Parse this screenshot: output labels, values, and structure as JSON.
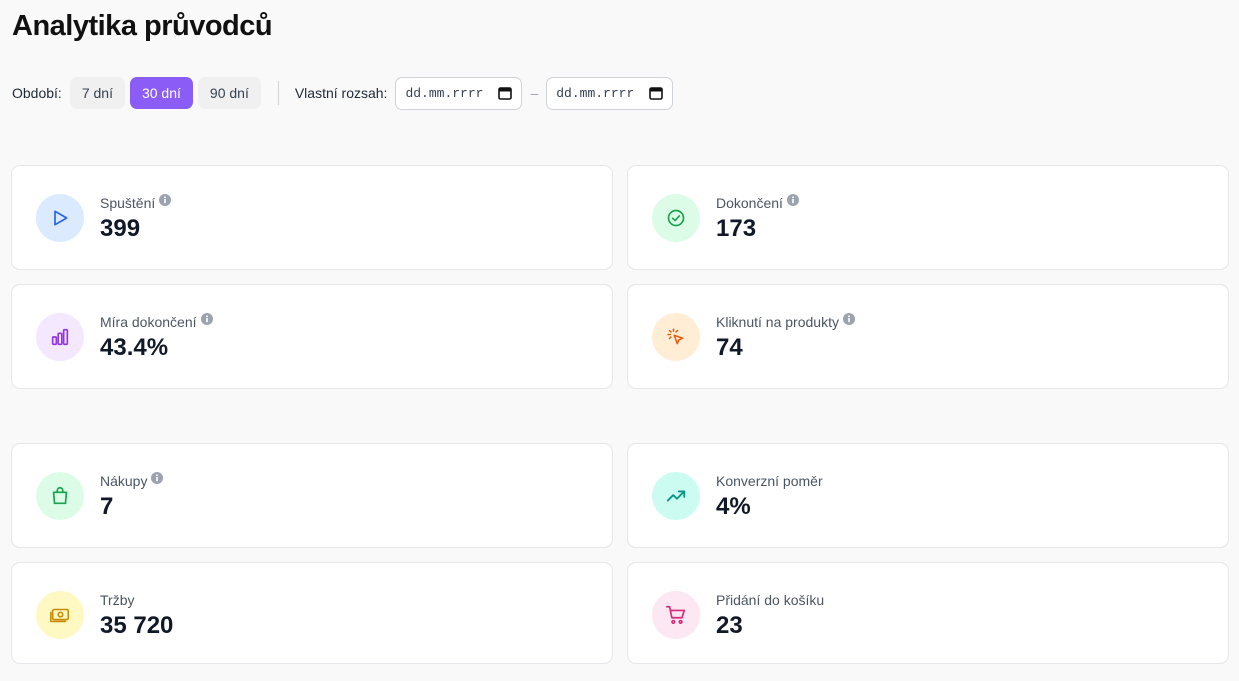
{
  "page": {
    "title": "Analytika průvodců"
  },
  "filters": {
    "period_label": "Období:",
    "periods": [
      {
        "label": "7 dní",
        "active": false
      },
      {
        "label": "30 dní",
        "active": true
      },
      {
        "label": "90 dní",
        "active": false
      }
    ],
    "custom_range_label": "Vlastní rozsah:",
    "date_from": {
      "placeholder": "dd.mm.rrrr"
    },
    "date_to": {
      "placeholder": "dd.mm.rrrr"
    },
    "separator": "–"
  },
  "colors": {
    "accent": "#8b5cf6"
  },
  "stats": [
    {
      "label": "Spuštění",
      "value": "399",
      "info": true,
      "icon": "play-icon",
      "icon_bg": "#dbeafe",
      "icon_color": "#2563eb"
    },
    {
      "label": "Dokončení",
      "value": "173",
      "info": true,
      "icon": "check-circle-icon",
      "icon_bg": "#dcfce7",
      "icon_color": "#16a34a"
    },
    {
      "label": "Míra dokončení",
      "value": "43.4%",
      "info": true,
      "icon": "bar-chart-icon",
      "icon_bg": "#f3e8ff",
      "icon_color": "#9333ea"
    },
    {
      "label": "Kliknutí na produkty",
      "value": "74",
      "info": true,
      "icon": "cursor-click-icon",
      "icon_bg": "#ffedd5",
      "icon_color": "#ea580c"
    },
    {
      "label": "Nákupy",
      "value": "7",
      "info": true,
      "icon": "shopping-bag-icon",
      "icon_bg": "#dcfce7",
      "icon_color": "#16a34a"
    },
    {
      "label": "Konverzní poměr",
      "value": "4%",
      "info": false,
      "icon": "trending-up-icon",
      "icon_bg": "#ccfbf1",
      "icon_color": "#0d9488"
    },
    {
      "label": "Tržby",
      "value": "35 720",
      "info": false,
      "icon": "banknote-icon",
      "icon_bg": "#fef9c3",
      "icon_color": "#ca8a04"
    },
    {
      "label": "Přidání do košíku",
      "value": "23",
      "info": false,
      "icon": "cart-icon",
      "icon_bg": "#fce7f3",
      "icon_color": "#db2777"
    }
  ]
}
